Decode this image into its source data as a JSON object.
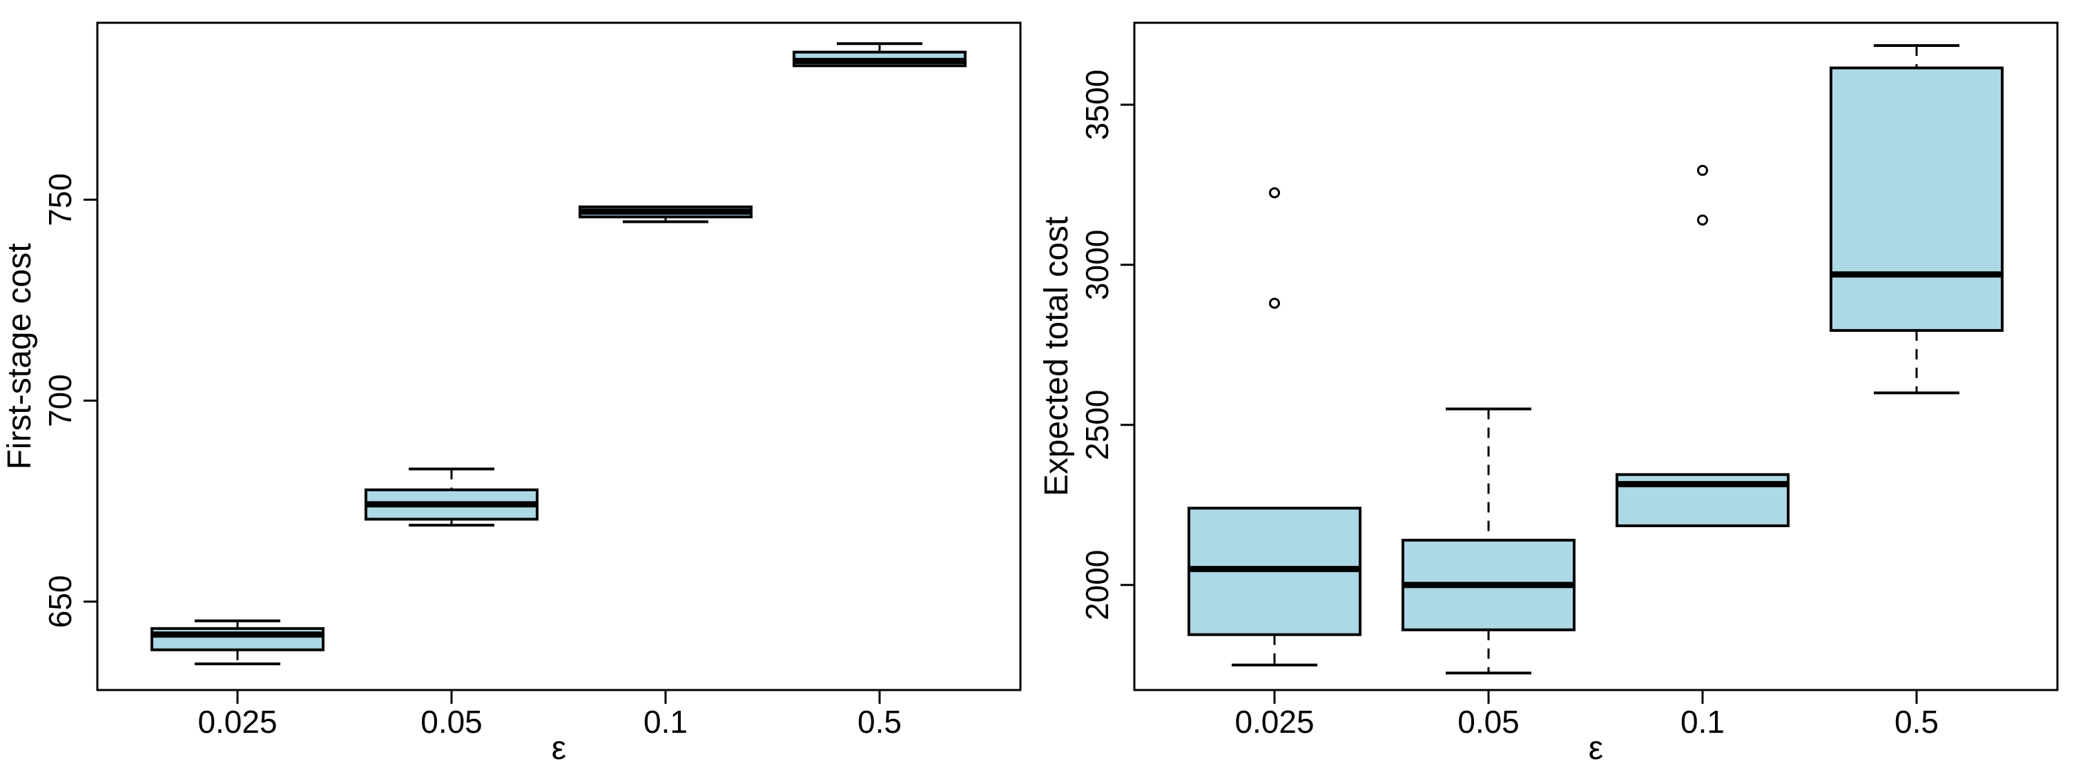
{
  "figure": {
    "background": "#ffffff",
    "box_fill": "#ADD8E6",
    "line_color": "#000000"
  },
  "chart_data": [
    {
      "type": "boxplot",
      "panel": "left",
      "title": "",
      "xlabel": "ε",
      "ylabel": "First-stage cost",
      "categories": [
        "0.025",
        "0.05",
        "0.1",
        "0.5"
      ],
      "yticks": [
        650,
        700,
        750
      ],
      "ylim": [
        628,
        794
      ],
      "grid": false,
      "legend": "none",
      "boxes": [
        {
          "label": "0.025",
          "whislo": 634.5,
          "q1": 638.0,
          "med": 641.8,
          "q3": 643.3,
          "whishi": 645.2,
          "fliers": []
        },
        {
          "label": "0.05",
          "whislo": 669.0,
          "q1": 670.5,
          "med": 674.2,
          "q3": 677.8,
          "whishi": 683.0,
          "fliers": []
        },
        {
          "label": "0.1",
          "whislo": 744.5,
          "q1": 745.7,
          "med": 747.0,
          "q3": 748.2,
          "whishi": 748.2,
          "fliers": []
        },
        {
          "label": "0.5",
          "whislo": 783.3,
          "q1": 783.3,
          "med": 784.5,
          "q3": 786.7,
          "whishi": 788.8,
          "fliers": []
        }
      ]
    },
    {
      "type": "boxplot",
      "panel": "right",
      "title": "",
      "xlabel": "ε",
      "ylabel": "Expected total cost",
      "categories": [
        "0.025",
        "0.05",
        "0.1",
        "0.5"
      ],
      "yticks": [
        2000,
        2500,
        3000,
        3500
      ],
      "ylim": [
        1672,
        3756
      ],
      "grid": false,
      "legend": "none",
      "boxes": [
        {
          "label": "0.025",
          "whislo": 1750,
          "q1": 1845,
          "med": 2050,
          "q3": 2240,
          "whishi": 2240,
          "fliers": [
            2880,
            3225
          ]
        },
        {
          "label": "0.05",
          "whislo": 1725,
          "q1": 1860,
          "med": 2000,
          "q3": 2140,
          "whishi": 2550,
          "fliers": []
        },
        {
          "label": "0.1",
          "whislo": 2185,
          "q1": 2185,
          "med": 2315,
          "q3": 2345,
          "whishi": 2345,
          "fliers": [
            3140,
            3295
          ]
        },
        {
          "label": "0.5",
          "whislo": 2600,
          "q1": 2795,
          "med": 2970,
          "q3": 3615,
          "whishi": 3685,
          "fliers": []
        }
      ]
    }
  ]
}
